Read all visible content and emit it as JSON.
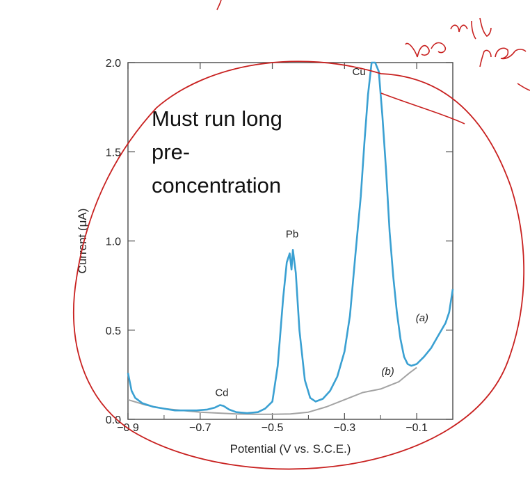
{
  "chart_data": {
    "type": "line",
    "title": "",
    "xlabel": "Potential (V vs. S.C.E.)",
    "ylabel": "Current (μA)",
    "xlim": [
      -0.9,
      0.0
    ],
    "ylim": [
      0.0,
      2.0
    ],
    "x_reversed": false,
    "grid": false,
    "x_ticks": [
      -0.9,
      -0.7,
      -0.5,
      -0.3,
      -0.1
    ],
    "x_tick_labels": [
      "−0.9",
      "−0.7",
      "−0.5",
      "−0.3",
      "−0.1"
    ],
    "x_minor_ticks": [
      -0.8,
      -0.6,
      -0.4,
      -0.2
    ],
    "y_ticks": [
      0.0,
      0.5,
      1.0,
      1.5,
      2.0
    ],
    "y_tick_labels": [
      "0.0",
      "0.5",
      "1.0",
      "1.5",
      "2.0"
    ],
    "series": [
      {
        "label": "(a)",
        "color": "#3aa0d2",
        "points": [
          [
            -0.9,
            0.26
          ],
          [
            -0.89,
            0.16
          ],
          [
            -0.88,
            0.12
          ],
          [
            -0.86,
            0.09
          ],
          [
            -0.83,
            0.07
          ],
          [
            -0.8,
            0.06
          ],
          [
            -0.77,
            0.05
          ],
          [
            -0.74,
            0.05
          ],
          [
            -0.71,
            0.05
          ],
          [
            -0.68,
            0.055
          ],
          [
            -0.66,
            0.065
          ],
          [
            -0.645,
            0.08
          ],
          [
            -0.635,
            0.075
          ],
          [
            -0.62,
            0.055
          ],
          [
            -0.6,
            0.04
          ],
          [
            -0.57,
            0.035
          ],
          [
            -0.54,
            0.04
          ],
          [
            -0.52,
            0.06
          ],
          [
            -0.5,
            0.1
          ],
          [
            -0.485,
            0.3
          ],
          [
            -0.47,
            0.68
          ],
          [
            -0.46,
            0.88
          ],
          [
            -0.452,
            0.93
          ],
          [
            -0.447,
            0.84
          ],
          [
            -0.443,
            0.95
          ],
          [
            -0.435,
            0.82
          ],
          [
            -0.425,
            0.5
          ],
          [
            -0.41,
            0.22
          ],
          [
            -0.395,
            0.12
          ],
          [
            -0.38,
            0.1
          ],
          [
            -0.36,
            0.115
          ],
          [
            -0.34,
            0.16
          ],
          [
            -0.32,
            0.24
          ],
          [
            -0.3,
            0.38
          ],
          [
            -0.285,
            0.58
          ],
          [
            -0.27,
            0.92
          ],
          [
            -0.255,
            1.25
          ],
          [
            -0.245,
            1.55
          ],
          [
            -0.235,
            1.82
          ],
          [
            -0.225,
            2.0
          ],
          [
            -0.215,
            2.0
          ],
          [
            -0.205,
            1.95
          ],
          [
            -0.195,
            1.7
          ],
          [
            -0.185,
            1.4
          ],
          [
            -0.175,
            1.05
          ],
          [
            -0.165,
            0.8
          ],
          [
            -0.155,
            0.6
          ],
          [
            -0.145,
            0.45
          ],
          [
            -0.135,
            0.35
          ],
          [
            -0.125,
            0.31
          ],
          [
            -0.115,
            0.3
          ],
          [
            -0.1,
            0.31
          ],
          [
            -0.08,
            0.35
          ],
          [
            -0.06,
            0.4
          ],
          [
            -0.04,
            0.47
          ],
          [
            -0.02,
            0.54
          ],
          [
            -0.01,
            0.6
          ],
          [
            0.0,
            0.73
          ]
        ]
      },
      {
        "label": "(b)",
        "color": "#a3a3a3",
        "points": [
          [
            -0.9,
            0.11
          ],
          [
            -0.85,
            0.08
          ],
          [
            -0.8,
            0.06
          ],
          [
            -0.75,
            0.05
          ],
          [
            -0.7,
            0.04
          ],
          [
            -0.65,
            0.035
          ],
          [
            -0.6,
            0.03
          ],
          [
            -0.55,
            0.028
          ],
          [
            -0.5,
            0.028
          ],
          [
            -0.45,
            0.03
          ],
          [
            -0.4,
            0.04
          ],
          [
            -0.35,
            0.07
          ],
          [
            -0.3,
            0.11
          ],
          [
            -0.25,
            0.15
          ],
          [
            -0.2,
            0.17
          ],
          [
            -0.15,
            0.21
          ],
          [
            -0.12,
            0.26
          ],
          [
            -0.1,
            0.29
          ]
        ]
      }
    ],
    "annotations": [
      {
        "text": "Cd",
        "x": -0.64,
        "y": 0.13
      },
      {
        "text": "Pb",
        "x": -0.445,
        "y": 1.02
      },
      {
        "text": "Cu",
        "x": -0.26,
        "y": 1.93
      },
      {
        "text": "(a)",
        "x": -0.085,
        "y": 0.55
      },
      {
        "text": "(b)",
        "x": -0.18,
        "y": 0.25
      }
    ]
  },
  "note": {
    "lines": [
      "Must run long",
      "pre-",
      "concentration"
    ]
  },
  "handwriting": {
    "color": "#c8201f",
    "text": "lee able to s"
  }
}
